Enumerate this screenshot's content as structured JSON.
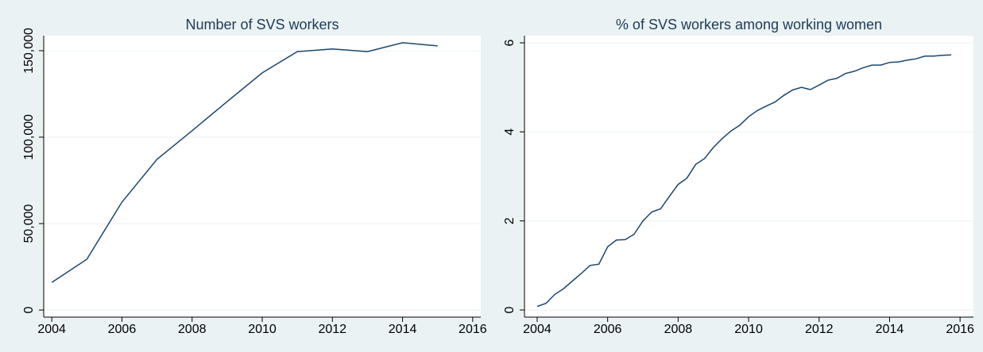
{
  "chart_data": [
    {
      "type": "line",
      "title": "Number of SVS workers",
      "x": [
        2004,
        2005,
        2006,
        2007,
        2008,
        2009,
        2010,
        2011,
        2012,
        2013,
        2014,
        2015
      ],
      "values": [
        16000,
        29400,
        62400,
        87200,
        103700,
        120600,
        137200,
        149500,
        151000,
        149500,
        154600,
        152800
      ],
      "color": "#1a476f",
      "xlim": [
        2003.77,
        2016.23
      ],
      "xticks": [
        2004,
        2006,
        2008,
        2010,
        2012,
        2014,
        2016
      ],
      "ylim": [
        -4100,
        158700
      ],
      "yticks": [
        0,
        {
          "value": 50000,
          "label": "50,000"
        },
        {
          "value": 100000,
          "label": "100,000"
        },
        {
          "value": 150000,
          "label": "150,000"
        }
      ],
      "grid": true
    },
    {
      "type": "line",
      "title": "% of SVS workers among working women",
      "x": [
        2004,
        2004.25,
        2004.5,
        2004.75,
        2005,
        2005.25,
        2005.5,
        2005.75,
        2006,
        2006.25,
        2006.5,
        2006.75,
        2007,
        2007.25,
        2007.5,
        2007.75,
        2008,
        2008.25,
        2008.5,
        2008.75,
        2009,
        2009.25,
        2009.5,
        2009.75,
        2010,
        2010.25,
        2010.5,
        2010.75,
        2011,
        2011.25,
        2011.5,
        2011.75,
        2012,
        2012.25,
        2012.5,
        2012.75,
        2013,
        2013.25,
        2013.5,
        2013.75,
        2014,
        2014.25,
        2014.5,
        2014.75,
        2015,
        2015.25,
        2015.5,
        2015.75
      ],
      "values": [
        0.08,
        0.15,
        0.35,
        0.48,
        0.65,
        0.82,
        1.0,
        1.03,
        1.42,
        1.57,
        1.58,
        1.7,
        2.0,
        2.2,
        2.27,
        2.55,
        2.82,
        2.96,
        3.27,
        3.4,
        3.65,
        3.85,
        4.02,
        4.15,
        4.34,
        4.48,
        4.58,
        4.67,
        4.82,
        4.94,
        5.0,
        4.95,
        5.05,
        5.16,
        5.2,
        5.31,
        5.36,
        5.44,
        5.5,
        5.5,
        5.56,
        5.57,
        5.61,
        5.64,
        5.7,
        5.7,
        5.72,
        5.73
      ],
      "color": "#1a476f",
      "xlim": [
        2003.64,
        2016.38
      ],
      "xticks": [
        2004,
        2006,
        2008,
        2010,
        2012,
        2014,
        2016
      ],
      "ylim": [
        -0.16,
        6.16
      ],
      "yticks": [
        0,
        2,
        4,
        6
      ],
      "grid": true
    }
  ]
}
